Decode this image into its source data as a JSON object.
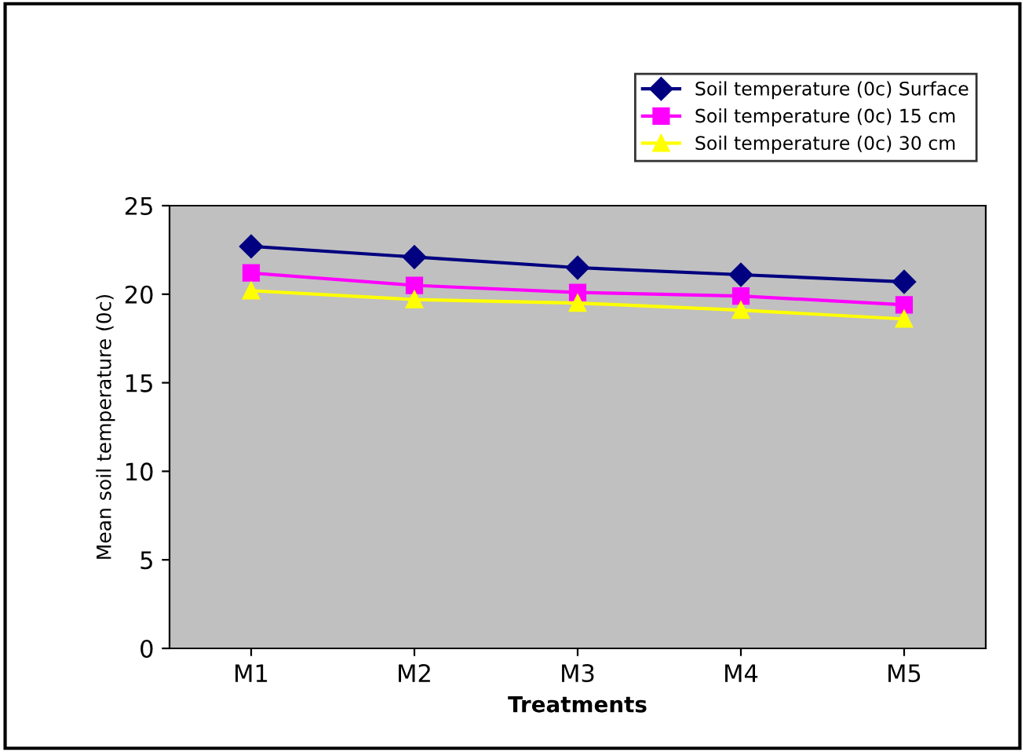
{
  "chart_data": {
    "type": "line",
    "xlabel": "Treatments",
    "ylabel": "Mean soil temperature (0c)",
    "categories": [
      "M1",
      "M2",
      "M3",
      "M4",
      "M5"
    ],
    "series": [
      {
        "name": "Soil temperature (0c) Surface",
        "color": "#000080",
        "marker": "diamond",
        "values": [
          22.7,
          22.1,
          21.5,
          21.1,
          20.7
        ]
      },
      {
        "name": "Soil temperature (0c) 15 cm",
        "color": "#ff00ff",
        "marker": "square",
        "values": [
          21.2,
          20.5,
          20.1,
          19.9,
          19.4
        ]
      },
      {
        "name": "Soil temperature (0c) 30 cm",
        "color": "#ffff00",
        "marker": "triangle",
        "values": [
          20.2,
          19.7,
          19.5,
          19.1,
          18.6
        ]
      }
    ],
    "ylim": [
      0,
      25
    ],
    "yticks": [
      0,
      5,
      10,
      15,
      20,
      25
    ],
    "grid": false,
    "legend": "top right",
    "line_style": "solid"
  }
}
